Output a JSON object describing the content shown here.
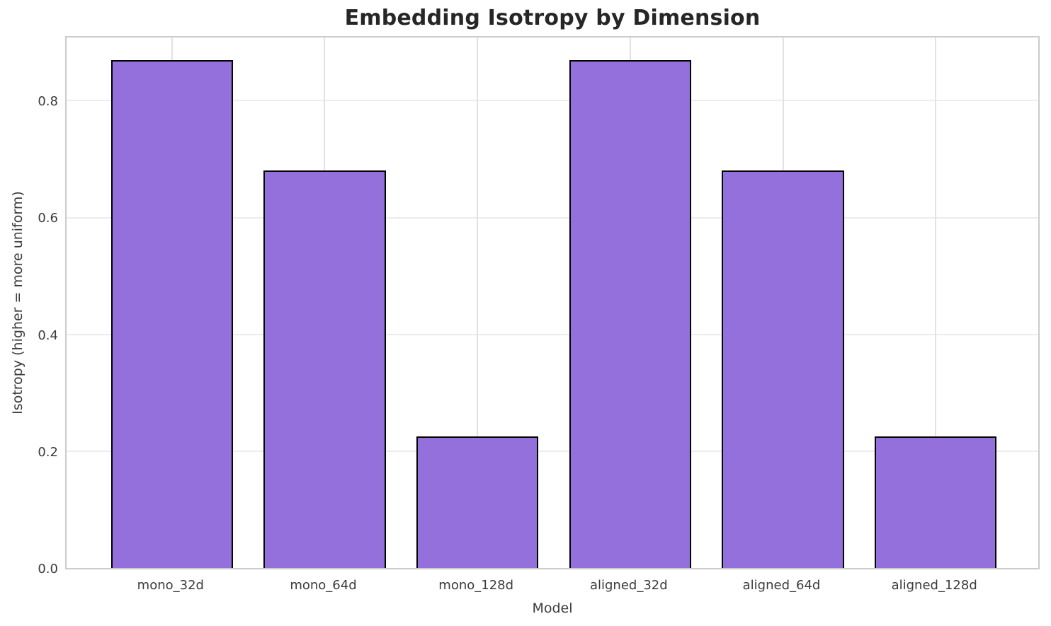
{
  "title": "Embedding Isotropy by Dimension",
  "chart_data": {
    "type": "bar",
    "categories": [
      "mono_32d",
      "mono_64d",
      "mono_128d",
      "aligned_32d",
      "aligned_64d",
      "aligned_128d"
    ],
    "values": [
      0.87,
      0.68,
      0.225,
      0.87,
      0.68,
      0.225
    ],
    "title": "Embedding Isotropy by Dimension",
    "xlabel": "Model",
    "ylabel": "Isotropy (higher = more uniform)",
    "ylim": [
      0.0,
      0.913
    ],
    "y_ticks": [
      0.0,
      0.2,
      0.4,
      0.6,
      0.8
    ],
    "y_tick_labels": [
      "0.0",
      "0.2",
      "0.4",
      "0.6",
      "0.8"
    ],
    "grid": true,
    "legend_position": "none",
    "bar_color": "#9370DB",
    "bar_edge_color": "#000000",
    "background_color": "#ffffff"
  }
}
